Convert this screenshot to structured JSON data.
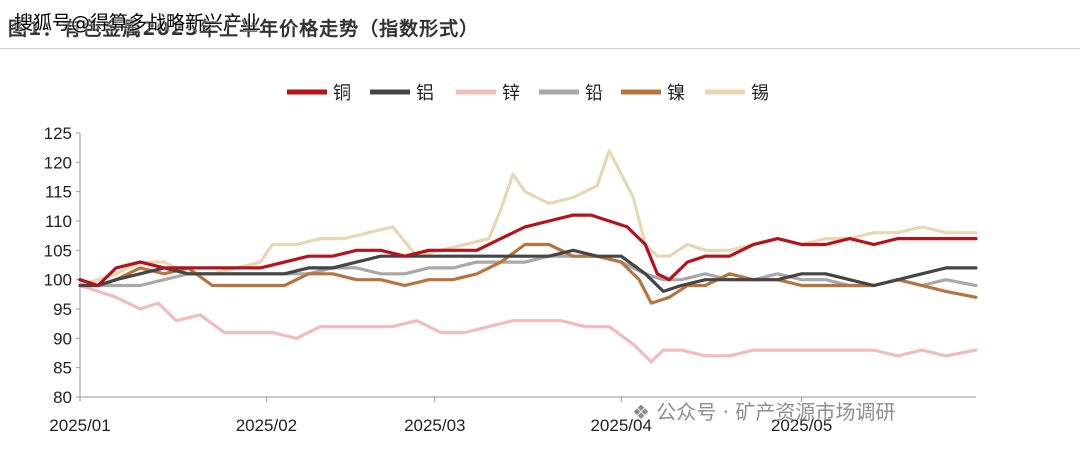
{
  "header": {
    "title": "图1：有色金属2025年上半年价格走势（指数形式）",
    "watermark_top": "搜狐号@得算多战略新兴产业"
  },
  "watermark_bottom": "公众号 · 矿产资源市场调研",
  "chart_data": {
    "type": "line",
    "title": "有色金属2025年上半年价格走势（指数形式）",
    "xlabel": "",
    "ylabel": "",
    "ylim": [
      80,
      125
    ],
    "yticks": [
      80,
      85,
      90,
      95,
      100,
      105,
      110,
      115,
      120,
      125
    ],
    "grid": false,
    "legend_position": "top-center",
    "x_ticks": [
      {
        "label": "2025/01",
        "day": 0
      },
      {
        "label": "2025/02",
        "day": 31
      },
      {
        "label": "2025/03",
        "day": 59
      },
      {
        "label": "2025/04",
        "day": 90
      },
      {
        "label": "2025/05",
        "day": 120
      }
    ],
    "x_range_days": [
      0,
      149
    ],
    "series": [
      {
        "name": "铜",
        "color": "#b5121b",
        "x": [
          0,
          3,
          6,
          10,
          14,
          18,
          22,
          26,
          30,
          34,
          38,
          42,
          46,
          50,
          54,
          58,
          62,
          66,
          70,
          74,
          78,
          82,
          85,
          88,
          91,
          94,
          96,
          98,
          101,
          104,
          108,
          112,
          116,
          120,
          124,
          128,
          132,
          136,
          140,
          144,
          149
        ],
        "y": [
          100,
          99,
          102,
          103,
          102,
          102,
          102,
          102,
          102,
          103,
          104,
          104,
          105,
          105,
          104,
          105,
          105,
          105,
          107,
          109,
          110,
          111,
          111,
          110,
          109,
          106,
          101,
          100,
          103,
          104,
          104,
          106,
          107,
          106,
          106,
          107,
          106,
          107,
          107,
          107,
          107
        ]
      },
      {
        "name": "铝",
        "color": "#454545",
        "x": [
          0,
          3,
          6,
          10,
          14,
          18,
          22,
          26,
          30,
          34,
          38,
          42,
          46,
          50,
          54,
          58,
          62,
          66,
          70,
          74,
          78,
          82,
          86,
          90,
          94,
          97,
          100,
          104,
          108,
          112,
          116,
          120,
          124,
          128,
          132,
          136,
          140,
          144,
          148,
          149
        ],
        "y": [
          99,
          99,
          100,
          101,
          102,
          101,
          101,
          101,
          101,
          101,
          102,
          102,
          103,
          104,
          104,
          104,
          104,
          104,
          104,
          104,
          104,
          105,
          104,
          104,
          101,
          98,
          99,
          100,
          100,
          100,
          100,
          101,
          101,
          100,
          99,
          100,
          101,
          102,
          102,
          102
        ]
      },
      {
        "name": "锌",
        "color": "#f0bcbc",
        "x": [
          0,
          3,
          6,
          10,
          13,
          16,
          20,
          24,
          28,
          32,
          36,
          40,
          44,
          48,
          52,
          56,
          60,
          64,
          68,
          72,
          76,
          80,
          84,
          88,
          92,
          95,
          97,
          100,
          104,
          108,
          112,
          116,
          120,
          124,
          128,
          132,
          136,
          140,
          144,
          149
        ],
        "y": [
          99,
          98,
          97,
          95,
          96,
          93,
          94,
          91,
          91,
          91,
          90,
          92,
          92,
          92,
          92,
          93,
          91,
          91,
          92,
          93,
          93,
          93,
          92,
          92,
          89,
          86,
          88,
          88,
          87,
          87,
          88,
          88,
          88,
          88,
          88,
          88,
          87,
          88,
          87,
          88
        ]
      },
      {
        "name": "铅",
        "color": "#a8a8a8",
        "x": [
          0,
          3,
          6,
          10,
          14,
          18,
          22,
          26,
          30,
          34,
          38,
          42,
          46,
          50,
          54,
          58,
          62,
          66,
          70,
          74,
          78,
          82,
          86,
          90,
          94,
          97,
          100,
          104,
          108,
          112,
          116,
          120,
          124,
          128,
          132,
          136,
          140,
          144,
          149
        ],
        "y": [
          99,
          99,
          99,
          99,
          100,
          101,
          101,
          101,
          101,
          101,
          101,
          102,
          102,
          101,
          101,
          102,
          102,
          103,
          103,
          103,
          104,
          104,
          104,
          103,
          101,
          100,
          100,
          101,
          100,
          100,
          101,
          100,
          100,
          99,
          99,
          100,
          99,
          100,
          99
        ]
      },
      {
        "name": "镍",
        "color": "#b8743f",
        "x": [
          0,
          3,
          6,
          10,
          14,
          18,
          22,
          26,
          30,
          34,
          38,
          42,
          46,
          50,
          54,
          58,
          62,
          66,
          70,
          74,
          78,
          82,
          86,
          90,
          93,
          95,
          98,
          101,
          104,
          108,
          112,
          116,
          120,
          124,
          128,
          132,
          136,
          140,
          144,
          149
        ],
        "y": [
          100,
          99,
          100,
          102,
          101,
          102,
          99,
          99,
          99,
          99,
          101,
          101,
          100,
          100,
          99,
          100,
          100,
          101,
          103,
          106,
          106,
          104,
          104,
          103,
          100,
          96,
          97,
          99,
          99,
          101,
          100,
          100,
          99,
          99,
          99,
          99,
          100,
          99,
          98,
          97
        ]
      },
      {
        "name": "锡",
        "color": "#e8d7b2",
        "x": [
          0,
          3,
          6,
          10,
          14,
          18,
          22,
          26,
          30,
          32,
          36,
          40,
          44,
          48,
          52,
          56,
          60,
          64,
          68,
          70,
          72,
          74,
          78,
          82,
          86,
          88,
          90,
          92,
          94,
          96,
          98,
          101,
          104,
          108,
          112,
          116,
          120,
          124,
          128,
          132,
          136,
          140,
          144,
          149
        ],
        "y": [
          99,
          100,
          101,
          103,
          103,
          101,
          101,
          102,
          103,
          106,
          106,
          107,
          107,
          108,
          109,
          104,
          105,
          106,
          107,
          112,
          118,
          115,
          113,
          114,
          116,
          122,
          118,
          114,
          106,
          104,
          104,
          106,
          105,
          105,
          106,
          107,
          106,
          107,
          107,
          108,
          108,
          109,
          108,
          108
        ]
      }
    ]
  }
}
